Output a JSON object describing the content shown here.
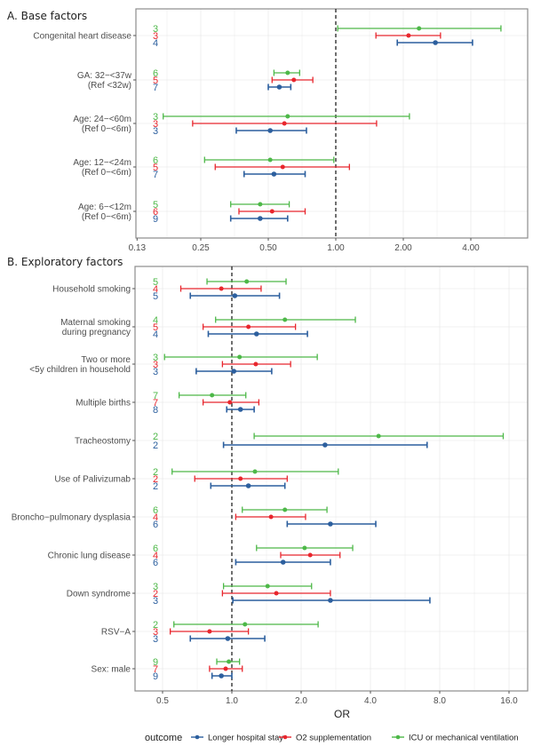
{
  "colors": {
    "Longer hospital stay": "#2c5f9e",
    "O2 supplementation": "#e8262d",
    "ICU or mechanical ventilation": "#4db848",
    "grid": "#ebebeb",
    "frame": "#8c8c8c"
  },
  "chart_data": [
    {
      "type": "forest",
      "title": "A. Base factors",
      "xlabel": "",
      "xscale": "log2",
      "xticks": [
        0.13,
        0.25,
        0.5,
        1.0,
        2.0,
        4.0
      ],
      "xtick_labels": [
        "0.13",
        "0.25",
        "0.50",
        "1.00",
        "2.00",
        "4.00"
      ],
      "xlim": [
        0.125,
        7.5
      ],
      "reference_line": 1.0,
      "rows": [
        {
          "label": [
            "Congenital heart disease"
          ],
          "series": [
            {
              "outcome": "ICU or mechanical ventilation",
              "n": "3",
              "or": 2.35,
              "lo": 1.02,
              "hi": 5.45
            },
            {
              "outcome": "O2 supplementation",
              "n": "3",
              "or": 2.11,
              "lo": 1.51,
              "hi": 2.93
            },
            {
              "outcome": "Longer hospital stay",
              "n": "4",
              "or": 2.78,
              "lo": 1.88,
              "hi": 4.07
            }
          ]
        },
        {
          "label": [
            "GA: 32−<37w",
            "(Ref <32w)"
          ],
          "series": [
            {
              "outcome": "ICU or mechanical ventilation",
              "n": "6",
              "or": 0.61,
              "lo": 0.53,
              "hi": 0.69
            },
            {
              "outcome": "O2 supplementation",
              "n": "5",
              "or": 0.65,
              "lo": 0.52,
              "hi": 0.79
            },
            {
              "outcome": "Longer hospital stay",
              "n": "7",
              "or": 0.56,
              "lo": 0.5,
              "hi": 0.63
            }
          ]
        },
        {
          "label": [
            "Age: 24−<60m",
            "(Ref 0−<6m)"
          ],
          "series": [
            {
              "outcome": "ICU or mechanical ventilation",
              "n": "3",
              "or": 0.61,
              "lo": 0.17,
              "hi": 2.13
            },
            {
              "outcome": "O2 supplementation",
              "n": "3",
              "or": 0.59,
              "lo": 0.23,
              "hi": 1.52
            },
            {
              "outcome": "Longer hospital stay",
              "n": "3",
              "or": 0.51,
              "lo": 0.36,
              "hi": 0.74
            }
          ]
        },
        {
          "label": [
            "Age: 12−<24m",
            "(Ref 0−<6m)"
          ],
          "series": [
            {
              "outcome": "ICU or mechanical ventilation",
              "n": "6",
              "or": 0.51,
              "lo": 0.26,
              "hi": 0.98
            },
            {
              "outcome": "O2 supplementation",
              "n": "5",
              "or": 0.58,
              "lo": 0.29,
              "hi": 1.15
            },
            {
              "outcome": "Longer hospital stay",
              "n": "7",
              "or": 0.53,
              "lo": 0.39,
              "hi": 0.73
            }
          ]
        },
        {
          "label": [
            "Age: 6−<12m",
            "(Ref 0−<6m)"
          ],
          "series": [
            {
              "outcome": "ICU or mechanical ventilation",
              "n": "5",
              "or": 0.46,
              "lo": 0.34,
              "hi": 0.62
            },
            {
              "outcome": "O2 supplementation",
              "n": "6",
              "or": 0.52,
              "lo": 0.37,
              "hi": 0.73
            },
            {
              "outcome": "Longer hospital stay",
              "n": "9",
              "or": 0.46,
              "lo": 0.34,
              "hi": 0.61
            }
          ]
        }
      ]
    },
    {
      "type": "forest",
      "title": "B. Exploratory factors",
      "xlabel": "OR",
      "xscale": "log2",
      "xticks": [
        0.5,
        1.0,
        2.0,
        4.0,
        8.0,
        16.0
      ],
      "xtick_labels": [
        "0.5",
        "1.0",
        "2.0",
        "4.0",
        "8.0",
        "16.0"
      ],
      "xlim": [
        0.38,
        19.5
      ],
      "reference_line": 1.0,
      "rows": [
        {
          "label": [
            "Household smoking"
          ],
          "series": [
            {
              "outcome": "ICU or mechanical ventilation",
              "n": "5",
              "or": 1.16,
              "lo": 0.78,
              "hi": 1.72
            },
            {
              "outcome": "O2 supplementation",
              "n": "4",
              "or": 0.9,
              "lo": 0.6,
              "hi": 1.34
            },
            {
              "outcome": "Longer hospital stay",
              "n": "5",
              "or": 1.03,
              "lo": 0.66,
              "hi": 1.61
            }
          ]
        },
        {
          "label": [
            "Maternal smoking",
            "during pregnancy"
          ],
          "series": [
            {
              "outcome": "ICU or mechanical ventilation",
              "n": "4",
              "or": 1.7,
              "lo": 0.85,
              "hi": 3.44
            },
            {
              "outcome": "O2 supplementation",
              "n": "5",
              "or": 1.18,
              "lo": 0.75,
              "hi": 1.89
            },
            {
              "outcome": "Longer hospital stay",
              "n": "4",
              "or": 1.28,
              "lo": 0.79,
              "hi": 2.13
            }
          ]
        },
        {
          "label": [
            "Two or more",
            "<5y children in household"
          ],
          "series": [
            {
              "outcome": "ICU or mechanical ventilation",
              "n": "3",
              "or": 1.08,
              "lo": 0.51,
              "hi": 2.35
            },
            {
              "outcome": "O2 supplementation",
              "n": "3",
              "or": 1.27,
              "lo": 0.91,
              "hi": 1.8
            },
            {
              "outcome": "Longer hospital stay",
              "n": "3",
              "or": 1.02,
              "lo": 0.7,
              "hi": 1.49
            }
          ]
        },
        {
          "label": [
            "Multiple births"
          ],
          "series": [
            {
              "outcome": "ICU or mechanical ventilation",
              "n": "7",
              "or": 0.82,
              "lo": 0.59,
              "hi": 1.15
            },
            {
              "outcome": "O2 supplementation",
              "n": "7",
              "or": 0.98,
              "lo": 0.75,
              "hi": 1.31
            },
            {
              "outcome": "Longer hospital stay",
              "n": "8",
              "or": 1.09,
              "lo": 0.95,
              "hi": 1.25
            }
          ]
        },
        {
          "label": [
            "Tracheostomy"
          ],
          "series": [
            {
              "outcome": "ICU or mechanical ventilation",
              "n": "2",
              "or": 4.34,
              "lo": 1.25,
              "hi": 15.1
            },
            {
              "outcome": "Longer hospital stay",
              "n": "2",
              "or": 2.54,
              "lo": 0.92,
              "hi": 7.05
            }
          ]
        },
        {
          "label": [
            "Use of Palivizumab"
          ],
          "series": [
            {
              "outcome": "ICU or mechanical ventilation",
              "n": "2",
              "or": 1.26,
              "lo": 0.55,
              "hi": 2.9
            },
            {
              "outcome": "O2 supplementation",
              "n": "2",
              "or": 1.09,
              "lo": 0.69,
              "hi": 1.74
            },
            {
              "outcome": "Longer hospital stay",
              "n": "2",
              "or": 1.18,
              "lo": 0.81,
              "hi": 1.7
            }
          ]
        },
        {
          "label": [
            "Broncho−pulmonary dysplasia"
          ],
          "series": [
            {
              "outcome": "ICU or mechanical ventilation",
              "n": "6",
              "or": 1.7,
              "lo": 1.11,
              "hi": 2.59
            },
            {
              "outcome": "O2 supplementation",
              "n": "4",
              "or": 1.48,
              "lo": 1.04,
              "hi": 2.09
            },
            {
              "outcome": "Longer hospital stay",
              "n": "6",
              "or": 2.68,
              "lo": 1.74,
              "hi": 4.22
            }
          ]
        },
        {
          "label": [
            "Chronic lung disease"
          ],
          "series": [
            {
              "outcome": "ICU or mechanical ventilation",
              "n": "6",
              "or": 2.07,
              "lo": 1.28,
              "hi": 3.35
            },
            {
              "outcome": "O2 supplementation",
              "n": "4",
              "or": 2.19,
              "lo": 1.63,
              "hi": 2.95
            },
            {
              "outcome": "Longer hospital stay",
              "n": "6",
              "or": 1.67,
              "lo": 1.04,
              "hi": 2.68
            }
          ]
        },
        {
          "label": [
            "Down syndrome"
          ],
          "series": [
            {
              "outcome": "ICU or mechanical ventilation",
              "n": "3",
              "or": 1.43,
              "lo": 0.92,
              "hi": 2.22
            },
            {
              "outcome": "O2 supplementation",
              "n": "2",
              "or": 1.56,
              "lo": 0.91,
              "hi": 2.68
            },
            {
              "outcome": "Longer hospital stay",
              "n": "3",
              "or": 2.68,
              "lo": 1.01,
              "hi": 7.25
            }
          ]
        },
        {
          "label": [
            "RSV−A"
          ],
          "series": [
            {
              "outcome": "ICU or mechanical ventilation",
              "n": "2",
              "or": 1.14,
              "lo": 0.56,
              "hi": 2.37
            },
            {
              "outcome": "O2 supplementation",
              "n": "3",
              "or": 0.8,
              "lo": 0.54,
              "hi": 1.18
            },
            {
              "outcome": "Longer hospital stay",
              "n": "3",
              "or": 0.96,
              "lo": 0.66,
              "hi": 1.39
            }
          ]
        },
        {
          "label": [
            "Sex: male"
          ],
          "series": [
            {
              "outcome": "ICU or mechanical ventilation",
              "n": "9",
              "or": 0.97,
              "lo": 0.86,
              "hi": 1.08
            },
            {
              "outcome": "O2 supplementation",
              "n": "7",
              "or": 0.94,
              "lo": 0.8,
              "hi": 1.11
            },
            {
              "outcome": "Longer hospital stay",
              "n": "9",
              "or": 0.9,
              "lo": 0.82,
              "hi": 1.0
            }
          ]
        }
      ]
    }
  ],
  "legend": {
    "title": "outcome",
    "position": "bottom",
    "items": [
      "Longer hospital stay",
      "O2 supplementation",
      "ICU or mechanical ventilation"
    ]
  }
}
